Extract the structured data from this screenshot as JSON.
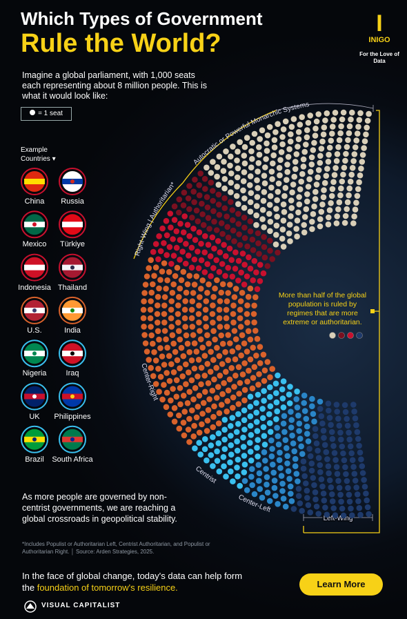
{
  "header": {
    "title_line1": "Which Types of Government",
    "title_line2": "Rule the World?"
  },
  "logo": {
    "name": "INIGO",
    "tagline": "For the Love of Data"
  },
  "intro": "Imagine a global parliament, with 1,000 seats each representing about 8 million people. This is what it would look like:",
  "key": "= 1 seat",
  "countries_heading": "Example Countries",
  "countries": [
    "China",
    "Russia",
    "Mexico",
    "Türkiye",
    "Indonesia",
    "Thailand",
    "U.S.",
    "India",
    "Nigeria",
    "Iraq",
    "UK",
    "Philippines",
    "Brazil",
    "South Africa"
  ],
  "parliament": {
    "segments": [
      {
        "color": "#d9cfb8",
        "seats": 270
      },
      {
        "color": "#7a1020",
        "seats": 70
      },
      {
        "color": "#c8102e",
        "seats": 80
      },
      {
        "color": "#d9622b",
        "seats": 290
      },
      {
        "color": "#3ac0ef",
        "seats": 90
      },
      {
        "color": "#2a86c8",
        "seats": 80
      },
      {
        "color": "#1e3a6b",
        "seats": 120
      }
    ],
    "labels": {
      "autocratic": "Autocratic or Powerful Monarchic Systems",
      "right_wing": "Right-Wing | Authoritarian*",
      "center_right": "Center-Right",
      "centrist": "Centrist",
      "center_left": "Center-Left",
      "left_wing": "Left-Wing"
    }
  },
  "annotation": "More than half of the global population is ruled by regimes that are more extreme or authoritarian.",
  "body": "As more people are governed by non-centrist governments, we are reaching a global crossroads in geopolitical stability.",
  "footnote": "*Includes Populist or Authoritarian Left, Centrist Authoritarian, and Populist or Authoritarian Right.",
  "source": "Source: Arden Strategies, 2025.",
  "closing": {
    "text": "In the face of global change, today's data can help form the",
    "highlight": "foundation of tomorrow's resilience."
  },
  "button": "Learn More",
  "brand": "VISUAL CAPITALIST"
}
